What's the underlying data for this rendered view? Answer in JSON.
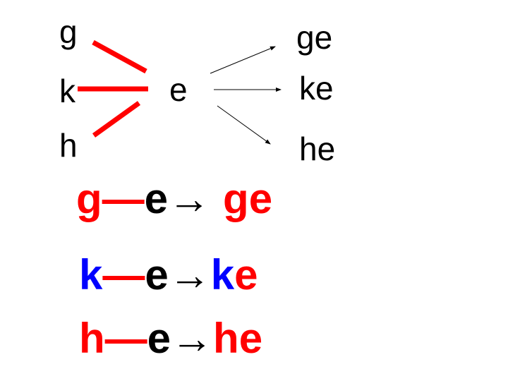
{
  "slide": {
    "top": {
      "initials": [
        "g",
        "k",
        "h"
      ],
      "vowel": "e",
      "results": [
        "ge",
        "ke",
        "he"
      ]
    },
    "rows": [
      {
        "initial": "g",
        "dash": "—",
        "vowel": "e",
        "arrow": "→",
        "result_initial": "g",
        "result_vowel": "e",
        "initial_color": "#ff0000",
        "vowel_color": "#000000",
        "result_initial_color": "#ff0000",
        "result_vowel_color": "#ff0000"
      },
      {
        "initial": "k",
        "dash": "—",
        "vowel": "e",
        "arrow": "→",
        "result_initial": "k",
        "result_vowel": "e",
        "initial_color": "#0000ff",
        "vowel_color": "#000000",
        "result_initial_color": "#0000ff",
        "result_vowel_color": "#ff0000"
      },
      {
        "initial": "h",
        "dash": "—",
        "vowel": "e",
        "arrow": "→",
        "result_initial": "h",
        "result_vowel": "e",
        "initial_color": "#ff0000",
        "vowel_color": "#000000",
        "result_initial_color": "#ff0000",
        "result_vowel_color": "#ff0000"
      }
    ],
    "colors": {
      "connector": "#ff0000",
      "dash": "#ff0000",
      "arrow": "#000000"
    }
  }
}
